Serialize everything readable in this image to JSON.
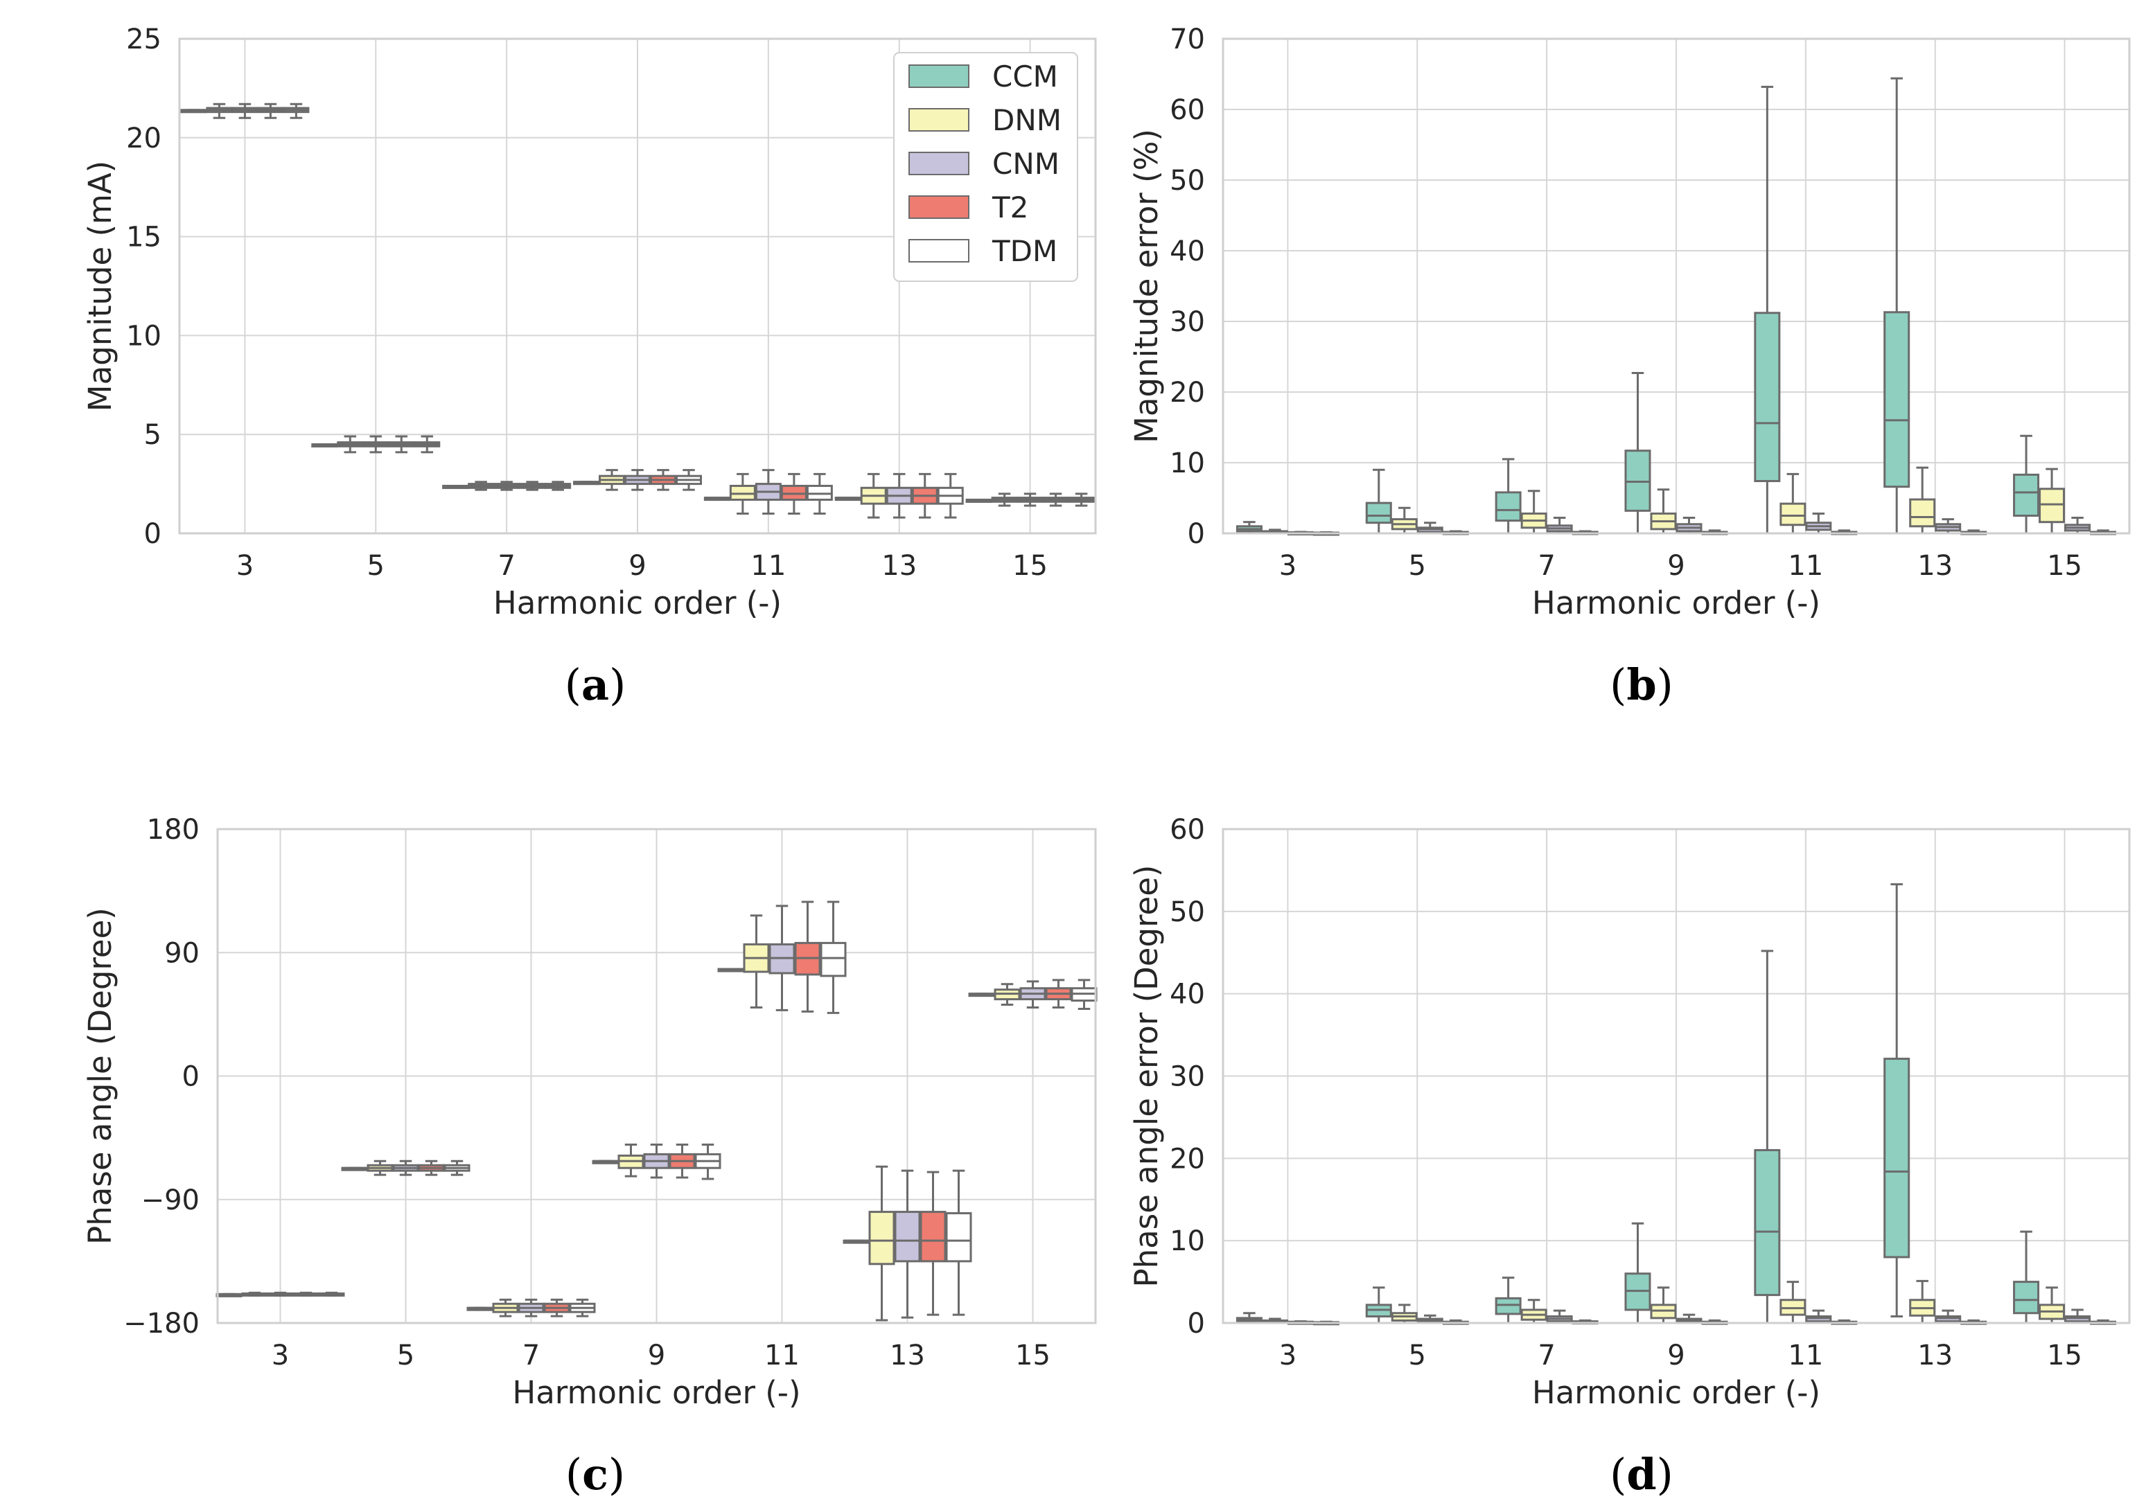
{
  "series_colors": {
    "CCM": "#8ecfc0",
    "DNM": "#f7f5b8",
    "CNM": "#c7c3dc",
    "T2": "#ee7c70",
    "TDM": "#ffffff"
  },
  "chart_data": [
    {
      "id": "a",
      "type": "box",
      "caption_letter": "a",
      "xlabel": "Harmonic order (-)",
      "ylabel": "Magnitude (mA)",
      "ylim": [
        0,
        25
      ],
      "yticks": [
        0,
        5,
        10,
        15,
        20,
        25
      ],
      "ytick_labels": [
        "0",
        "5",
        "10",
        "15",
        "20",
        "25"
      ],
      "categories": [
        "3",
        "5",
        "7",
        "9",
        "11",
        "13",
        "15"
      ],
      "legend": {
        "position": "top-right",
        "entries": [
          "CCM",
          "DNM",
          "CNM",
          "T2",
          "TDM"
        ]
      },
      "series_names": [
        "CCM",
        "DNM",
        "CNM",
        "T2",
        "TDM"
      ],
      "boxes": [
        [
          [
            21.4,
            21.4,
            21.4,
            21.4,
            21.4
          ],
          [
            21.0,
            21.3,
            21.4,
            21.5,
            21.7
          ],
          [
            21.0,
            21.3,
            21.4,
            21.5,
            21.7
          ],
          [
            21.0,
            21.3,
            21.4,
            21.5,
            21.7
          ],
          [
            21.0,
            21.3,
            21.4,
            21.5,
            21.7
          ]
        ],
        [
          [
            4.5,
            4.5,
            4.5,
            4.5,
            4.5
          ],
          [
            4.1,
            4.4,
            4.5,
            4.6,
            4.9
          ],
          [
            4.1,
            4.4,
            4.5,
            4.6,
            4.9
          ],
          [
            4.1,
            4.4,
            4.5,
            4.6,
            4.9
          ],
          [
            4.1,
            4.4,
            4.5,
            4.6,
            4.9
          ]
        ],
        [
          [
            2.4,
            2.4,
            2.4,
            2.4,
            2.4
          ],
          [
            2.2,
            2.3,
            2.4,
            2.5,
            2.6
          ],
          [
            2.2,
            2.3,
            2.4,
            2.5,
            2.6
          ],
          [
            2.2,
            2.3,
            2.4,
            2.5,
            2.6
          ],
          [
            2.2,
            2.3,
            2.4,
            2.5,
            2.6
          ]
        ],
        [
          [
            2.6,
            2.6,
            2.6,
            2.6,
            2.6
          ],
          [
            2.2,
            2.5,
            2.7,
            2.9,
            3.2
          ],
          [
            2.2,
            2.5,
            2.7,
            2.9,
            3.2
          ],
          [
            2.2,
            2.5,
            2.7,
            2.9,
            3.2
          ],
          [
            2.2,
            2.5,
            2.7,
            2.9,
            3.2
          ]
        ],
        [
          [
            1.8,
            1.8,
            1.8,
            1.8,
            1.8
          ],
          [
            1.0,
            1.7,
            2.0,
            2.4,
            3.0
          ],
          [
            1.0,
            1.7,
            2.1,
            2.5,
            3.2
          ],
          [
            1.0,
            1.7,
            2.0,
            2.4,
            3.0
          ],
          [
            1.0,
            1.7,
            2.0,
            2.4,
            3.0
          ]
        ],
        [
          [
            1.8,
            1.8,
            1.8,
            1.8,
            1.8
          ],
          [
            0.8,
            1.5,
            1.9,
            2.3,
            3.0
          ],
          [
            0.8,
            1.5,
            1.9,
            2.3,
            3.0
          ],
          [
            0.8,
            1.5,
            1.9,
            2.3,
            3.0
          ],
          [
            0.8,
            1.5,
            1.9,
            2.3,
            3.0
          ]
        ],
        [
          [
            1.7,
            1.7,
            1.7,
            1.7,
            1.7
          ],
          [
            1.4,
            1.6,
            1.7,
            1.8,
            2.0
          ],
          [
            1.4,
            1.6,
            1.7,
            1.8,
            2.0
          ],
          [
            1.4,
            1.6,
            1.7,
            1.8,
            2.0
          ],
          [
            1.4,
            1.6,
            1.7,
            1.8,
            2.0
          ]
        ]
      ]
    },
    {
      "id": "b",
      "type": "box",
      "caption_letter": "b",
      "xlabel": "Harmonic order (-)",
      "ylabel": "Magnitude error (%)",
      "ylim": [
        0,
        70
      ],
      "yticks": [
        0,
        10,
        20,
        30,
        40,
        50,
        60,
        70
      ],
      "ytick_labels": [
        "0",
        "10",
        "20",
        "30",
        "40",
        "50",
        "60",
        "70"
      ],
      "categories": [
        "3",
        "5",
        "7",
        "9",
        "11",
        "13",
        "15"
      ],
      "series_names": [
        "CCM",
        "DNM",
        "CNM",
        "T2"
      ],
      "boxes": [
        [
          [
            0.0,
            0.3,
            0.6,
            1.0,
            1.6
          ],
          [
            0.0,
            0.1,
            0.2,
            0.3,
            0.5
          ],
          [
            0.0,
            0.05,
            0.1,
            0.15,
            0.2
          ],
          [
            0.0,
            0.05,
            0.08,
            0.1,
            0.15
          ]
        ],
        [
          [
            0.0,
            1.5,
            2.5,
            4.3,
            9.0
          ],
          [
            0.0,
            0.6,
            1.3,
            2.0,
            3.6
          ],
          [
            0.0,
            0.2,
            0.6,
            0.8,
            1.5
          ],
          [
            0.0,
            0.05,
            0.1,
            0.2,
            0.3
          ]
        ],
        [
          [
            0.0,
            1.8,
            3.3,
            5.8,
            10.5
          ],
          [
            0.0,
            0.8,
            1.8,
            2.8,
            6.0
          ],
          [
            0.0,
            0.3,
            0.7,
            1.1,
            2.2
          ],
          [
            0.0,
            0.05,
            0.1,
            0.2,
            0.3
          ]
        ],
        [
          [
            0.0,
            3.2,
            7.3,
            11.7,
            22.7
          ],
          [
            0.0,
            0.6,
            1.7,
            2.8,
            6.2
          ],
          [
            0.0,
            0.3,
            0.8,
            1.3,
            2.2
          ],
          [
            0.0,
            0.05,
            0.1,
            0.2,
            0.4
          ]
        ],
        [
          [
            0.0,
            7.4,
            15.6,
            31.2,
            63.2
          ],
          [
            0.0,
            1.2,
            2.5,
            4.2,
            8.4
          ],
          [
            0.0,
            0.5,
            1.0,
            1.5,
            2.8
          ],
          [
            0.0,
            0.05,
            0.1,
            0.2,
            0.4
          ]
        ],
        [
          [
            0.0,
            6.6,
            16.0,
            31.3,
            64.4
          ],
          [
            0.0,
            1.0,
            2.3,
            4.8,
            9.3
          ],
          [
            0.0,
            0.4,
            0.9,
            1.3,
            2.0
          ],
          [
            0.0,
            0.05,
            0.1,
            0.2,
            0.4
          ]
        ],
        [
          [
            0.0,
            2.5,
            5.8,
            8.3,
            13.8
          ],
          [
            0.0,
            1.6,
            4.1,
            6.3,
            9.1
          ],
          [
            0.0,
            0.4,
            0.8,
            1.2,
            2.2
          ],
          [
            0.0,
            0.05,
            0.1,
            0.2,
            0.4
          ]
        ]
      ]
    },
    {
      "id": "c",
      "type": "box",
      "caption_letter": "c",
      "xlabel": "Harmonic order (-)",
      "ylabel": "Phase angle (Degree)",
      "ylim": [
        -180,
        180
      ],
      "yticks": [
        -180,
        -90,
        0,
        90,
        180
      ],
      "ytick_labels": [
        "−180",
        "−90",
        "0",
        "90",
        "180"
      ],
      "categories": [
        "3",
        "5",
        "7",
        "9",
        "11",
        "13",
        "15"
      ],
      "series_names": [
        "CCM",
        "DNM",
        "CNM",
        "T2",
        "TDM"
      ],
      "boxes": [
        [
          [
            -159,
            -159,
            -159,
            -159,
            -159
          ],
          [
            -160,
            -159.5,
            -159,
            -158.5,
            -158
          ],
          [
            -160,
            -159.5,
            -159,
            -158.5,
            -158
          ],
          [
            -160,
            -159.5,
            -159,
            -158.5,
            -158
          ],
          [
            -160,
            -159.5,
            -159,
            -158.5,
            -158
          ]
        ],
        [
          [
            -67,
            -67,
            -67,
            -67,
            -67
          ],
          [
            -72,
            -69,
            -67,
            -65,
            -62
          ],
          [
            -72,
            -69,
            -67,
            -65,
            -62
          ],
          [
            -72,
            -69,
            -67,
            -65,
            -62
          ],
          [
            -72,
            -69,
            -67,
            -65,
            -62
          ]
        ],
        [
          [
            -169,
            -169,
            -169,
            -169,
            -169
          ],
          [
            -175,
            -172,
            -169,
            -166,
            -163
          ],
          [
            -175,
            -172,
            -169,
            -166,
            -163
          ],
          [
            -175,
            -172,
            -169,
            -166,
            -163
          ],
          [
            -175,
            -172,
            -169,
            -166,
            -163
          ]
        ],
        [
          [
            -62,
            -62,
            -62,
            -62,
            -62
          ],
          [
            -73,
            -67,
            -62,
            -58,
            -50
          ],
          [
            -74,
            -67,
            -62,
            -57,
            -50
          ],
          [
            -74,
            -67,
            -62,
            -57,
            -50
          ],
          [
            -75,
            -67,
            -62,
            -57,
            -50
          ]
        ],
        [
          [
            78,
            78,
            78,
            78,
            78
          ],
          [
            50,
            76,
            86,
            96,
            117
          ],
          [
            48,
            75,
            86,
            96,
            124
          ],
          [
            47,
            74,
            86,
            97,
            127
          ],
          [
            46,
            73,
            86,
            97,
            127
          ]
        ],
        [
          [
            -120,
            -120,
            -120,
            -120,
            -120
          ],
          [
            -178,
            -137,
            -120,
            -99,
            -66
          ],
          [
            -176,
            -135,
            -120,
            -99,
            -69
          ],
          [
            -174,
            -135,
            -120,
            -99,
            -70
          ],
          [
            -174,
            -135,
            -120,
            -100,
            -69
          ]
        ],
        [
          [
            60,
            60,
            60,
            60,
            60
          ],
          [
            52,
            56,
            60,
            63,
            67
          ],
          [
            50,
            56,
            60,
            64,
            69
          ],
          [
            50,
            56,
            60,
            64,
            70
          ],
          [
            49,
            55,
            60,
            64,
            70
          ]
        ]
      ]
    },
    {
      "id": "d",
      "type": "box",
      "caption_letter": "d",
      "xlabel": "Harmonic order (-)",
      "ylabel": "Phase angle error (Degree)",
      "ylim": [
        0,
        60
      ],
      "yticks": [
        0,
        10,
        20,
        30,
        40,
        50,
        60
      ],
      "ytick_labels": [
        "0",
        "10",
        "20",
        "30",
        "40",
        "50",
        "60"
      ],
      "categories": [
        "3",
        "5",
        "7",
        "9",
        "11",
        "13",
        "15"
      ],
      "series_names": [
        "CCM",
        "DNM",
        "CNM",
        "T2"
      ],
      "boxes": [
        [
          [
            0.0,
            0.2,
            0.4,
            0.6,
            1.2
          ],
          [
            0.0,
            0.05,
            0.2,
            0.3,
            0.5
          ],
          [
            0.0,
            0.05,
            0.1,
            0.15,
            0.2
          ],
          [
            0.0,
            0.05,
            0.08,
            0.1,
            0.15
          ]
        ],
        [
          [
            0.0,
            0.8,
            1.6,
            2.2,
            4.3
          ],
          [
            0.0,
            0.3,
            0.8,
            1.2,
            2.2
          ],
          [
            0.0,
            0.1,
            0.3,
            0.5,
            0.9
          ],
          [
            0.0,
            0.05,
            0.1,
            0.15,
            0.3
          ]
        ],
        [
          [
            0.0,
            1.1,
            2.2,
            3.0,
            5.5
          ],
          [
            0.0,
            0.4,
            1.0,
            1.6,
            2.8
          ],
          [
            0.0,
            0.2,
            0.5,
            0.8,
            1.5
          ],
          [
            0.0,
            0.05,
            0.1,
            0.2,
            0.3
          ]
        ],
        [
          [
            0.0,
            1.6,
            3.9,
            6.0,
            12.1
          ],
          [
            0.0,
            0.6,
            1.5,
            2.2,
            4.3
          ],
          [
            0.0,
            0.1,
            0.3,
            0.5,
            1.0
          ],
          [
            0.0,
            0.05,
            0.1,
            0.15,
            0.3
          ]
        ],
        [
          [
            0.0,
            3.4,
            11.1,
            21.0,
            45.2
          ],
          [
            0.0,
            1.0,
            1.8,
            2.8,
            5.0
          ],
          [
            0.0,
            0.2,
            0.6,
            0.8,
            1.5
          ],
          [
            0.0,
            0.05,
            0.1,
            0.15,
            0.3
          ]
        ],
        [
          [
            0.8,
            8.0,
            18.4,
            32.1,
            53.3
          ],
          [
            0.0,
            0.9,
            1.8,
            2.8,
            5.1
          ],
          [
            0.0,
            0.2,
            0.6,
            0.8,
            1.5
          ],
          [
            0.0,
            0.05,
            0.1,
            0.15,
            0.3
          ]
        ],
        [
          [
            0.0,
            1.2,
            2.8,
            5.0,
            11.1
          ],
          [
            0.0,
            0.5,
            1.4,
            2.2,
            4.3
          ],
          [
            0.0,
            0.2,
            0.6,
            0.8,
            1.6
          ],
          [
            0.0,
            0.05,
            0.1,
            0.15,
            0.3
          ]
        ]
      ]
    }
  ]
}
